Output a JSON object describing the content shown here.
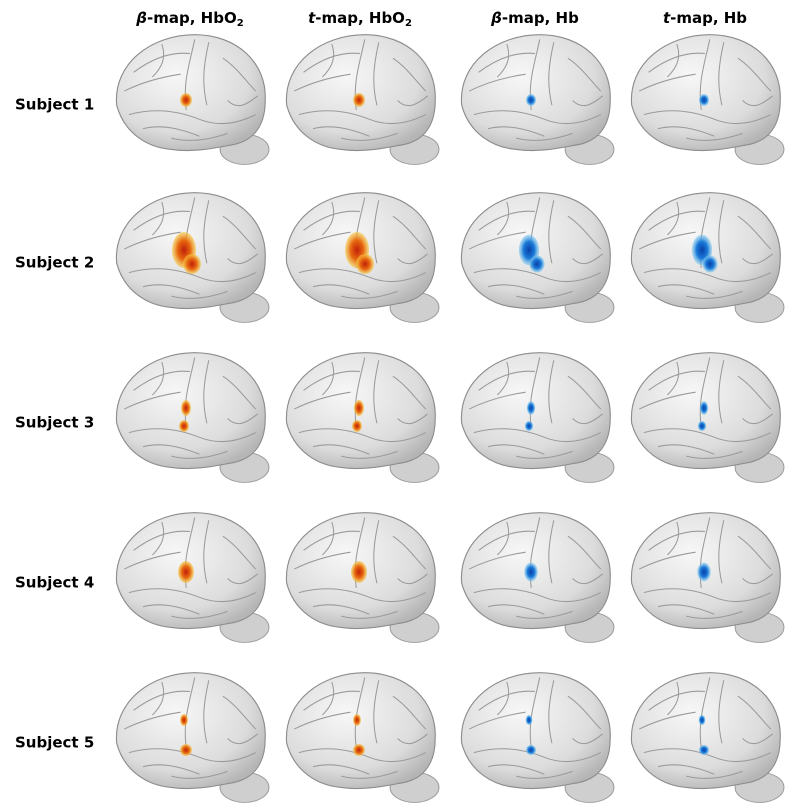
{
  "columns": [
    {
      "italic": "β",
      "text": "-map, HbO",
      "subscript": "2"
    },
    {
      "italic": "t",
      "text": "-map, HbO",
      "subscript": "2"
    },
    {
      "italic": "β",
      "text": "-map, Hb"
    },
    {
      "italic": "t",
      "text": "-map, Hb"
    }
  ],
  "rows": [
    "Subject 1",
    "Subject 2",
    "Subject 3",
    "Subject 4",
    "Subject 5"
  ]
}
